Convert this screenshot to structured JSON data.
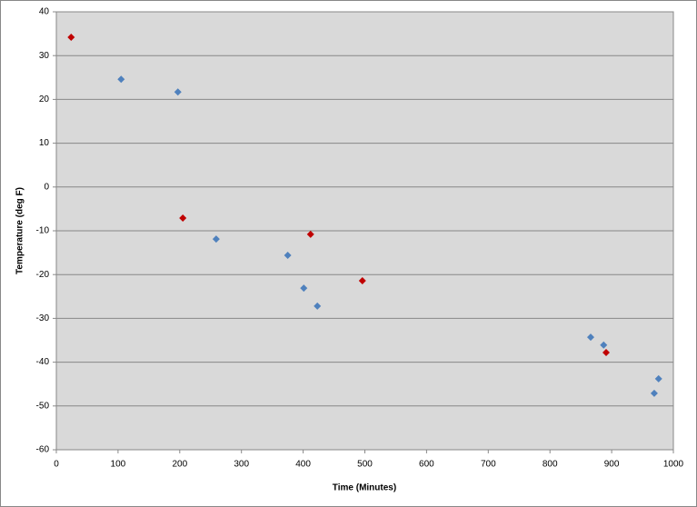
{
  "chart_data": {
    "type": "scatter",
    "x_label": "Time (Minutes)",
    "y_label": "Temperature (deg F)",
    "series": [
      {
        "color": "#4f81bd",
        "x": [
          105,
          197,
          259,
          375,
          401,
          423,
          866,
          887,
          969,
          976
        ],
        "values": [
          24.6,
          21.7,
          -11.9,
          -15.6,
          -23.1,
          -27.2,
          -34.3,
          -36.1,
          -47.1,
          -43.8
        ]
      },
      {
        "color": "#c00000",
        "x": [
          24,
          205,
          412,
          496,
          891
        ],
        "values": [
          34.2,
          -7.1,
          -10.8,
          -21.4,
          -37.8
        ]
      }
    ],
    "xlim": [
      0,
      1000
    ],
    "xticks": [
      0,
      100,
      200,
      300,
      400,
      500,
      600,
      700,
      800,
      900,
      1000
    ],
    "ylim": [
      -60,
      40
    ],
    "yticks": [
      -60,
      -50,
      -40,
      -30,
      -20,
      -10,
      0,
      10,
      20,
      30,
      40
    ],
    "grid": true,
    "plot_background": "#d9d9d9"
  }
}
